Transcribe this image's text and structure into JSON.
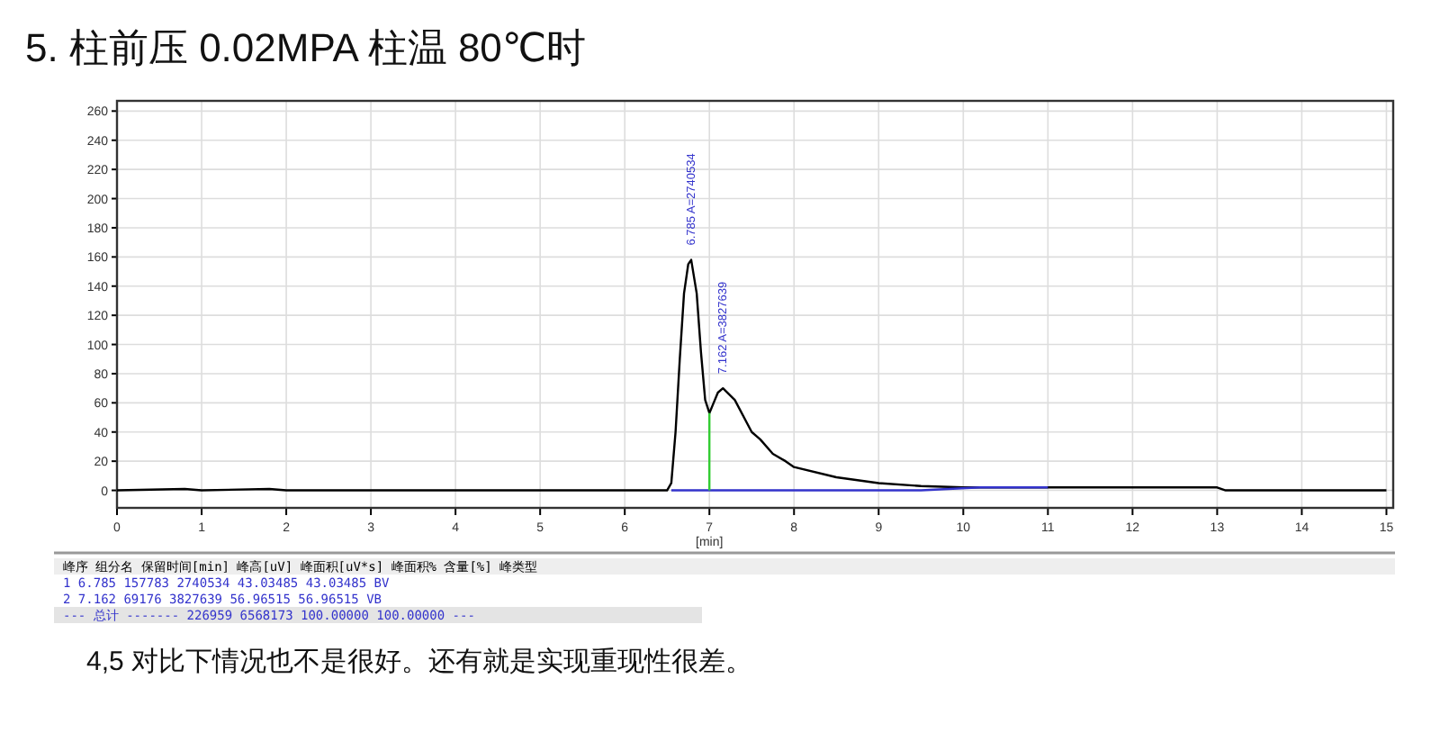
{
  "chart_data": {
    "type": "line",
    "title": "5. 柱前压 0.02MPA  柱温 80℃时",
    "xlabel": "[min]",
    "xlim": [
      0,
      15.08
    ],
    "ylim": [
      -12,
      267
    ],
    "xticks": [
      0,
      1,
      2,
      3,
      4,
      5,
      6,
      7,
      8,
      9,
      10,
      11,
      12,
      13,
      14,
      15
    ],
    "yticks": [
      0,
      20,
      40,
      60,
      80,
      100,
      120,
      140,
      160,
      180,
      200,
      220,
      240,
      260
    ],
    "grid": true,
    "series": [
      {
        "color": "#000000",
        "x": [
          0,
          0.8,
          1.0,
          1.8,
          2.0,
          6.5,
          6.55,
          6.6,
          6.65,
          6.7,
          6.75,
          6.785,
          6.85,
          6.9,
          6.95,
          7.0,
          7.05,
          7.1,
          7.16,
          7.3,
          7.5,
          7.6,
          7.75,
          7.9,
          8.0,
          8.5,
          9.0,
          9.5,
          10.0,
          11.0,
          13.0,
          13.1,
          15.0
        ],
        "values": [
          0,
          1,
          0,
          1,
          0,
          0,
          5,
          40,
          90,
          135,
          155,
          158,
          135,
          95,
          62,
          53,
          60,
          67,
          70,
          62,
          40,
          35,
          25,
          20,
          16,
          9,
          5,
          3,
          2,
          2,
          2,
          0,
          0
        ]
      },
      {
        "color": "#3333cc",
        "x": [
          6.55,
          9.5,
          10.2,
          11.0
        ],
        "values": [
          0,
          0,
          2,
          2
        ]
      },
      {
        "color": "#33cc33",
        "x": [
          7.0,
          7.0
        ],
        "values": [
          0,
          53
        ]
      }
    ],
    "annotations": [
      {
        "text": "6.785 A=2740534",
        "x": 6.785,
        "y": 158
      },
      {
        "text": "7.162 A=3827639",
        "x": 7.162,
        "y": 70
      },
      "峰序  组分名  保留时间[min]  峰高[uV]  峰面积[uV*s]  峰面积%  含量[%]  峰类型",
      "1    6.785  157783  2740534  43.03485  43.03485  BV",
      "2    7.162  69176  3827639  56.96515  56.96515  VB",
      "---  总计  -------  226959  6568173  100.00000  100.00000  ---",
      "4,5 对比下情况也不是很好。还有就是实现重现性很差。"
    ]
  }
}
